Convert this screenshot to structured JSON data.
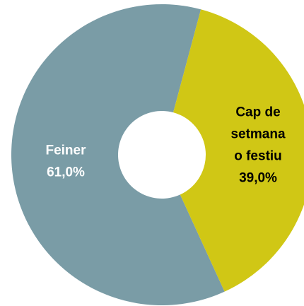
{
  "chart_data": {
    "type": "donut",
    "categories": [
      "Feiner",
      "Cap de setmana o festiu"
    ],
    "values": [
      61.0,
      39.0
    ],
    "value_labels": [
      "61,0%",
      "39,0%"
    ],
    "colors": [
      "#7a9ca6",
      "#d0c715"
    ],
    "label_colors": [
      "#ffffff",
      "#000000"
    ]
  }
}
